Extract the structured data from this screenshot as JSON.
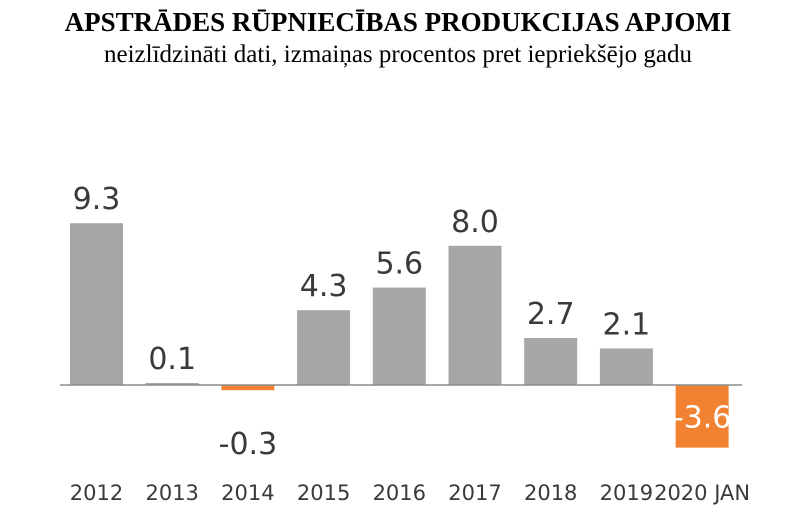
{
  "chart_data": {
    "type": "bar",
    "title": "APSTRĀDES RŪPNIECĪBAS PRODUKCIJAS APJOMI",
    "subtitle": "neizlīdzināti dati, izmaiņas procentos pret iepriekšējo gadu",
    "categories": [
      "2012",
      "2013",
      "2014",
      "2015",
      "2016",
      "2017",
      "2018",
      "2019",
      "2020 JAN"
    ],
    "values": [
      9.3,
      0.1,
      -0.3,
      4.3,
      5.6,
      8.0,
      2.7,
      2.1,
      -3.6
    ],
    "value_labels": [
      "9.3",
      "0.1",
      "-0.3",
      "4.3",
      "5.6",
      "8.0",
      "2.7",
      "2.1",
      "-3.6"
    ],
    "colors": {
      "positive": "#a6a6a6",
      "negative": "#f08232",
      "negative_label": "#ffffff",
      "axis": "#8c8c8c"
    },
    "grid": false,
    "legend": "none"
  }
}
